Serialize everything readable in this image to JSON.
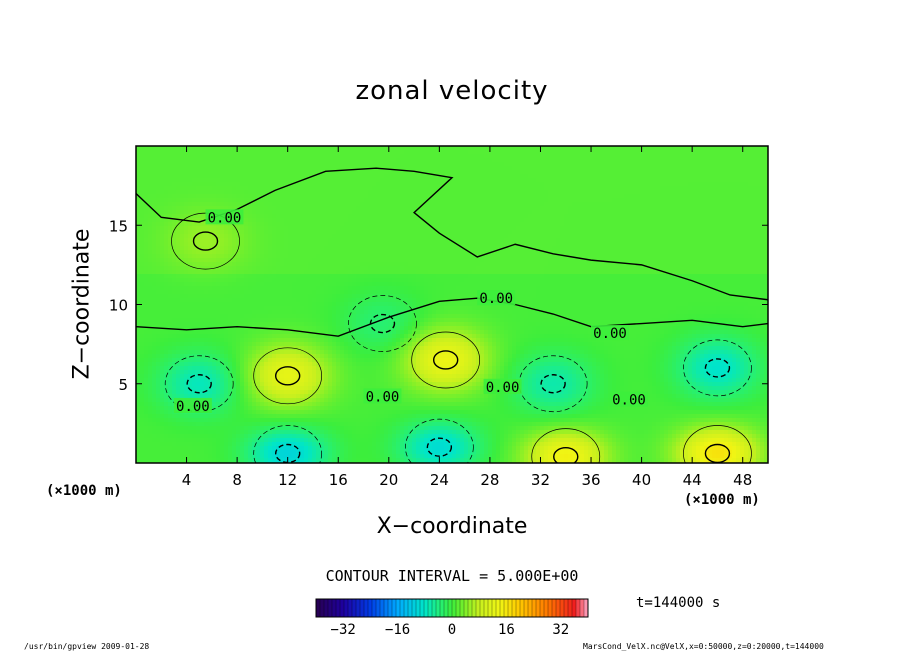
{
  "figure": {
    "title": "zonal velocity",
    "xlabel": "X−coordinate",
    "ylabel": "Z−coordinate",
    "x_unit_left": "(×1000 m)",
    "x_unit_right": "(×1000 m)",
    "contour_interval": "CONTOUR INTERVAL = 5.000E+00",
    "time_label": "t=144000 s",
    "footer_left": "/usr/bin/gpview  2009-01-28",
    "footer_right": "MarsCond_VelX.nc@VelX,x=0:50000,z=0:20000,t=144000"
  },
  "chart_data": {
    "type": "heatmap",
    "title": "zonal velocity",
    "xlabel": "X−coordinate",
    "ylabel": "Z−coordinate",
    "xlim": [
      0,
      50
    ],
    "ylim": [
      0,
      20
    ],
    "x_ticks": [
      4,
      8,
      12,
      16,
      20,
      24,
      28,
      32,
      36,
      40,
      44,
      48
    ],
    "y_ticks": [
      5,
      10,
      15
    ],
    "contour_interval": 5.0,
    "contour_labels": [
      {
        "text": "0.00",
        "x": 7,
        "y": 15.5
      },
      {
        "text": "0.00",
        "x": 28.5,
        "y": 10.4
      },
      {
        "text": "0.00",
        "x": 37.5,
        "y": 8.2
      },
      {
        "text": "0.00",
        "x": 4.5,
        "y": 3.6
      },
      {
        "text": "0.00",
        "x": 19.5,
        "y": 4.2
      },
      {
        "text": "0.00",
        "x": 29,
        "y": 4.8
      },
      {
        "text": "0.00",
        "x": 39,
        "y": 4.0
      }
    ],
    "features": [
      {
        "kind": "positive",
        "x": 12,
        "y": 5.5,
        "peak": 12
      },
      {
        "kind": "positive",
        "x": 24.5,
        "y": 6.5,
        "peak": 13
      },
      {
        "kind": "positive",
        "x": 34,
        "y": 0.4,
        "peak": 14
      },
      {
        "kind": "positive",
        "x": 46,
        "y": 0.6,
        "peak": 16
      },
      {
        "kind": "positive",
        "x": 5.5,
        "y": 14,
        "peak": 4
      },
      {
        "kind": "negative",
        "x": 5,
        "y": 5,
        "peak": -8
      },
      {
        "kind": "negative",
        "x": 12,
        "y": 0.6,
        "peak": -11
      },
      {
        "kind": "negative",
        "x": 24,
        "y": 1.0,
        "peak": -10
      },
      {
        "kind": "negative",
        "x": 33,
        "y": 5.0,
        "peak": -7
      },
      {
        "kind": "negative",
        "x": 46,
        "y": 6.0,
        "peak": -9
      },
      {
        "kind": "negative",
        "x": 19.5,
        "y": 8.8,
        "peak": -4
      }
    ],
    "colorbar": {
      "range": [
        -40,
        40
      ],
      "ticks": [
        -32,
        -16,
        0,
        16,
        32
      ],
      "tick_labels": [
        "−32",
        "−16",
        "0",
        "16",
        "32"
      ]
    }
  }
}
